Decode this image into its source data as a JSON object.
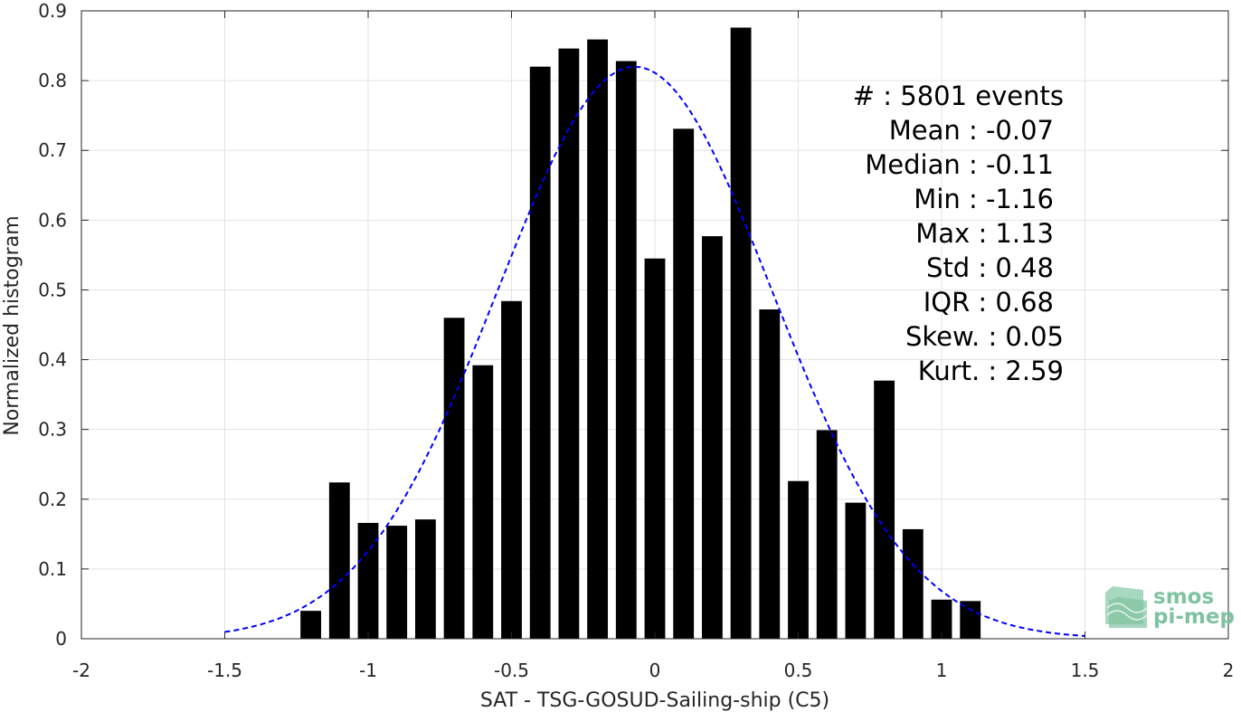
{
  "chart_data": {
    "type": "bar",
    "xlabel": "SAT - TSG-GOSUD-Sailing-ship (C5)",
    "ylabel": "Normalized histogram",
    "xlim": [
      -2,
      2
    ],
    "ylim": [
      0,
      0.9
    ],
    "xticks": [
      -2,
      -1.5,
      -1,
      -0.5,
      0,
      0.5,
      1,
      1.5,
      2
    ],
    "xtick_labels": [
      "-2",
      "-1.5",
      "-1",
      "-0.5",
      "0",
      "0.5",
      "1",
      "1.5",
      "2"
    ],
    "yticks": [
      0,
      0.1,
      0.2,
      0.3,
      0.4,
      0.5,
      0.6,
      0.7,
      0.8,
      0.9
    ],
    "ytick_labels": [
      "0",
      "0.1",
      "0.2",
      "0.3",
      "0.4",
      "0.5",
      "0.6",
      "0.7",
      "0.8",
      "0.9"
    ],
    "grid": true,
    "bar_color": "#000000",
    "bin_width": 0.1,
    "bin_centers": [
      -1.2,
      -1.1,
      -1.0,
      -0.9,
      -0.8,
      -0.7,
      -0.6,
      -0.5,
      -0.4,
      -0.3,
      -0.2,
      -0.1,
      0.0,
      0.1,
      0.2,
      0.3,
      0.4,
      0.5,
      0.6,
      0.7,
      0.8,
      0.9,
      1.0,
      1.1
    ],
    "values": [
      0.04,
      0.224,
      0.166,
      0.162,
      0.171,
      0.46,
      0.392,
      0.484,
      0.82,
      0.846,
      0.859,
      0.828,
      0.545,
      0.731,
      0.577,
      0.876,
      0.472,
      0.226,
      0.299,
      0.195,
      0.37,
      0.157,
      0.056,
      0.054
    ],
    "fit_curve": {
      "style": "dashed",
      "color": "#0000ff",
      "x_range": [
        -1.5,
        1.5
      ],
      "mean": -0.07,
      "std": 0.48,
      "peak": 0.82
    },
    "annotations": [
      "#  : 5801 events",
      "Mean : -0.07",
      "Median : -0.11",
      "Min : -1.16",
      "Max : 1.13",
      "Std : 0.48",
      "IQR : 0.68",
      "Skew. : 0.05",
      "Kurt. : 2.59"
    ]
  },
  "logo": {
    "line1": "smos",
    "line2": "pi-mep",
    "color": "#7fc3a0"
  }
}
